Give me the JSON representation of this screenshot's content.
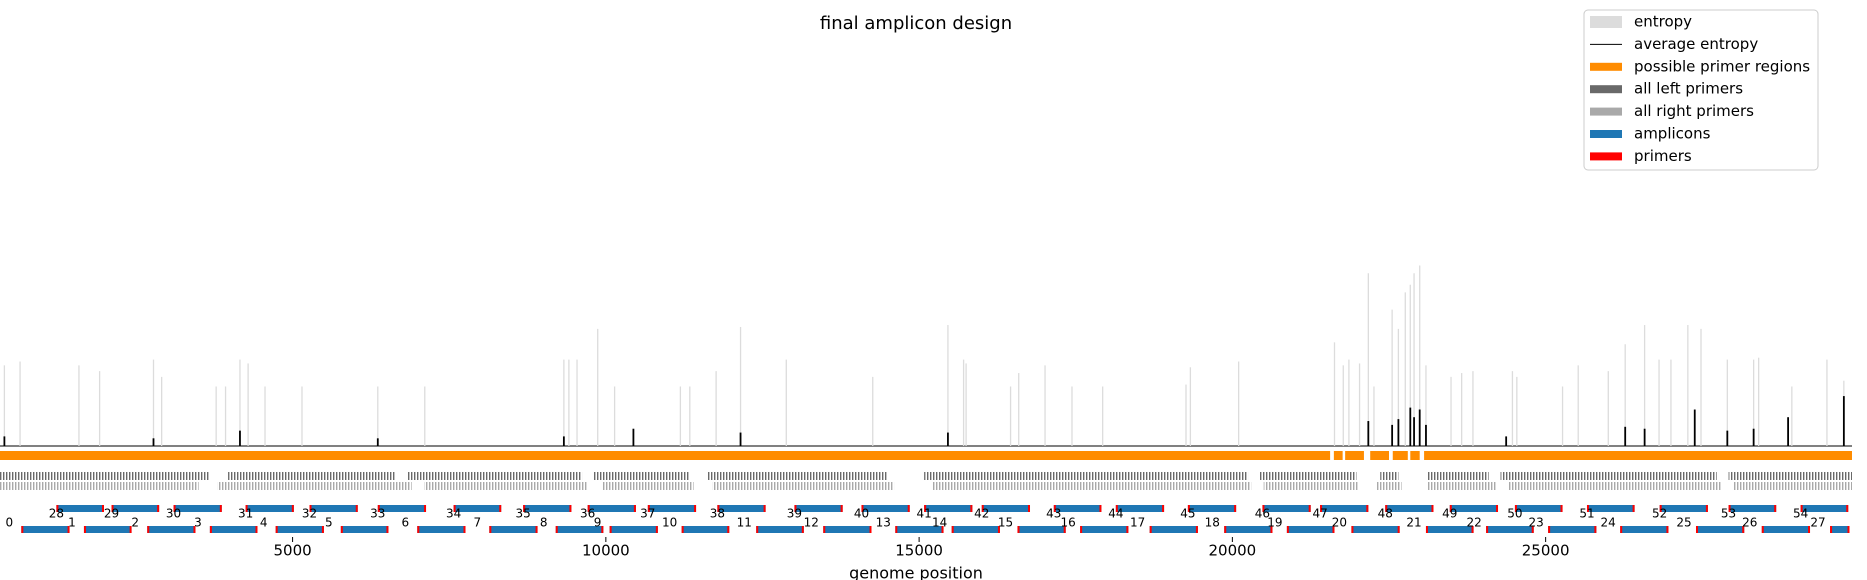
{
  "chart_data": {
    "type": "genome_track",
    "title": "final amplicon design",
    "xlabel": "genome position",
    "xlim": [
      330,
      29890
    ],
    "xticks": [
      5000,
      10000,
      15000,
      20000,
      25000
    ],
    "ylim": [
      0,
      1
    ],
    "legend": "upper right",
    "entropy": {
      "name": "entropy",
      "color": "#dcdcdc",
      "x": [
        400,
        650,
        1590,
        1920,
        2780,
        2910,
        3780,
        3930,
        4160,
        4290,
        4560,
        5150,
        6360,
        7110,
        9330,
        9410,
        9540,
        9870,
        10140,
        11190,
        11340,
        11760,
        12150,
        12880,
        14260,
        15460,
        15710,
        15750,
        16460,
        16590,
        17010,
        17440,
        17930,
        19260,
        19330,
        20100,
        21630,
        21770,
        21860,
        22030,
        22170,
        22260,
        22550,
        22650,
        22760,
        22840,
        22900,
        22990,
        23090,
        23490,
        23660,
        23840,
        24470,
        24540,
        25270,
        25520,
        26000,
        26270,
        26580,
        26810,
        27000,
        27270,
        27480,
        27900,
        28320,
        28400,
        28930,
        29490,
        29760
      ],
      "values": [
        0.42,
        0.44,
        0.42,
        0.39,
        0.45,
        0.36,
        0.31,
        0.31,
        0.45,
        0.43,
        0.31,
        0.31,
        0.31,
        0.31,
        0.45,
        0.45,
        0.45,
        0.61,
        0.31,
        0.31,
        0.31,
        0.39,
        0.62,
        0.45,
        0.36,
        0.63,
        0.45,
        0.43,
        0.31,
        0.38,
        0.42,
        0.31,
        0.31,
        0.32,
        0.41,
        0.44,
        0.54,
        0.42,
        0.45,
        0.43,
        0.9,
        0.31,
        0.71,
        0.61,
        0.8,
        0.84,
        0.9,
        0.94,
        0.42,
        0.36,
        0.38,
        0.39,
        0.39,
        0.36,
        0.31,
        0.42,
        0.39,
        0.53,
        0.63,
        0.45,
        0.45,
        0.63,
        0.61,
        0.45,
        0.45,
        0.46,
        0.31,
        0.45,
        0.34
      ]
    },
    "average_entropy": {
      "name": "average entropy",
      "color": "#000000",
      "x": [
        400,
        2780,
        4160,
        6360,
        9330,
        10440,
        12150,
        15460,
        22170,
        22550,
        22650,
        22840,
        22900,
        22990,
        23090,
        24370,
        26270,
        26580,
        27380,
        27900,
        28320,
        28870,
        29760
      ],
      "values": [
        0.05,
        0.04,
        0.08,
        0.04,
        0.05,
        0.09,
        0.07,
        0.07,
        0.13,
        0.11,
        0.14,
        0.2,
        0.15,
        0.19,
        0.11,
        0.05,
        0.1,
        0.09,
        0.19,
        0.08,
        0.09,
        0.15,
        0.26
      ]
    },
    "primer_regions": {
      "name": "possible primer regions",
      "color": "#ff8c00",
      "ranges": [
        [
          330,
          21560
        ],
        [
          21620,
          21760
        ],
        [
          21800,
          22100
        ],
        [
          22200,
          22500
        ],
        [
          22560,
          22800
        ],
        [
          22840,
          22990
        ],
        [
          23060,
          29890
        ]
      ]
    },
    "left_primers": {
      "name": "all left primers",
      "color": "#696969",
      "ranges": [
        [
          330,
          3680
        ],
        [
          3970,
          6650
        ],
        [
          6840,
          9620
        ],
        [
          9810,
          11340
        ],
        [
          11630,
          14500
        ],
        [
          15080,
          20250
        ],
        [
          20440,
          21980
        ],
        [
          22360,
          22650
        ],
        [
          23120,
          24090
        ],
        [
          24280,
          27730
        ],
        [
          27920,
          29890
        ]
      ]
    },
    "right_primers": {
      "name": "all right primers",
      "color": "#a9a9a9",
      "ranges": [
        [
          330,
          3500
        ],
        [
          3800,
          6900
        ],
        [
          7100,
          9700
        ],
        [
          9950,
          11400
        ],
        [
          11700,
          14600
        ],
        [
          15200,
          20300
        ],
        [
          20500,
          22000
        ],
        [
          22300,
          22700
        ],
        [
          23100,
          24200
        ],
        [
          24400,
          27800
        ],
        [
          28000,
          29890
        ]
      ]
    },
    "amplicons": {
      "name": "amplicons",
      "color": "#1f77b4",
      "labels": [
        "0",
        "1",
        "2",
        "3",
        "4",
        "5",
        "6",
        "7",
        "8",
        "9",
        "10",
        "11",
        "12",
        "13",
        "14",
        "15",
        "16",
        "17",
        "18",
        "19",
        "20",
        "21",
        "22",
        "23",
        "24",
        "25",
        "26",
        "27",
        "28",
        "29",
        "30",
        "31",
        "32",
        "33",
        "34",
        "35",
        "36",
        "37",
        "38",
        "39",
        "40",
        "41",
        "42",
        "43",
        "44",
        "45",
        "46",
        "47",
        "48",
        "49",
        "50",
        "51",
        "52",
        "53",
        "54"
      ],
      "starts": [
        670,
        1670,
        2680,
        3680,
        4730,
        5770,
        6990,
        8140,
        9200,
        10060,
        11210,
        12400,
        13470,
        14620,
        15520,
        16570,
        17570,
        18680,
        19870,
        20870,
        21900,
        23090,
        24050,
        25040,
        26190,
        27400,
        28450,
        29540,
        1230,
        2110,
        3100,
        4250,
        5270,
        6360,
        7570,
        8680,
        9710,
        10670,
        11780,
        13010,
        14080,
        15080,
        16000,
        17150,
        18140,
        19290,
        20480,
        21400,
        22440,
        23470,
        24510,
        25660,
        26820,
        27920,
        29070
      ],
      "ends": [
        1440,
        2430,
        3450,
        4440,
        5500,
        6530,
        7760,
        8910,
        9960,
        10830,
        11970,
        13160,
        14240,
        15390,
        16290,
        17340,
        18340,
        19450,
        20640,
        21630,
        22670,
        23850,
        24810,
        25810,
        26960,
        28170,
        29220,
        29850,
        1990,
        2870,
        3870,
        5020,
        6040,
        7130,
        8330,
        9450,
        10480,
        11440,
        12550,
        13780,
        14850,
        15850,
        16770,
        17910,
        18910,
        20060,
        21250,
        22170,
        23210,
        24240,
        25270,
        26420,
        27590,
        28680,
        29830
      ]
    },
    "primers": {
      "name": "primers",
      "color": "#ff0000"
    }
  }
}
